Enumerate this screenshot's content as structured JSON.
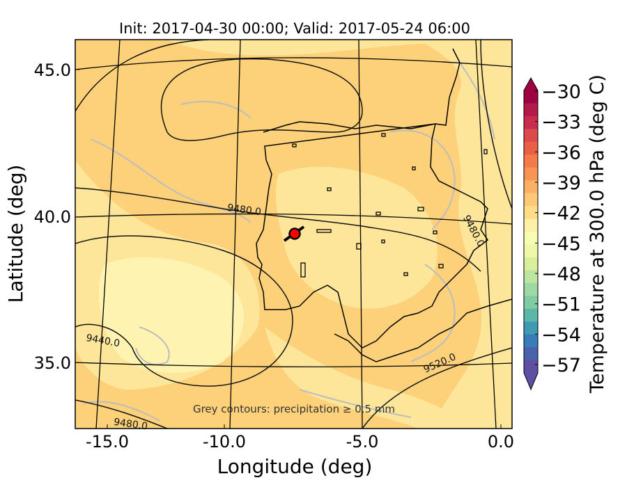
{
  "title": "Init: 2017-04-30 00:00; Valid: 2017-05-24 06:00",
  "xlabel": "Longitude (deg)",
  "ylabel": "Latitude (deg)",
  "x_ticks": [
    "-15.0",
    "-10.0",
    "-5.0",
    "0.0"
  ],
  "y_ticks": [
    "45.0",
    "40.0",
    "35.0"
  ],
  "colorbar": {
    "label": "Temperature at 300.0 hPa (deg C)",
    "ticks": [
      "−30",
      "−33",
      "−36",
      "−39",
      "−42",
      "−45",
      "−48",
      "−51",
      "−54",
      "−57"
    ],
    "colors": [
      "#9e0142",
      "#b21a4a",
      "#c92d4b",
      "#dc4a4c",
      "#ea6045",
      "#f47a49",
      "#f89555",
      "#fbb066",
      "#fdc877",
      "#fedc88",
      "#fff0a8",
      "#fafcb3",
      "#eef8a7",
      "#d9ef9b",
      "#bde5a0",
      "#9ed9a3",
      "#7ecba4",
      "#5db7a8",
      "#3f9bb4",
      "#3a7cb8",
      "#4a61ab",
      "#5e4fa2"
    ]
  },
  "contour_labels": [
    "9480.0",
    "9480.0",
    "9440.0",
    "9520.0",
    "9480.0"
  ],
  "note": "Grey contours: precipitation ≥ 0.5 mm",
  "marker_color": "#ff0000",
  "map_colors": {
    "base": "#fdd07a",
    "light": "#fde69a",
    "lighter": "#fef3b0",
    "precip": "#bdbdbd"
  }
}
